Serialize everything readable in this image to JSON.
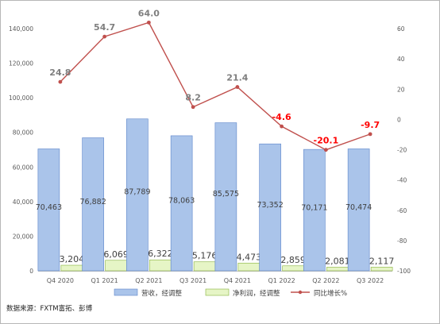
{
  "chart_data": {
    "type": "bar",
    "categories": [
      "Q4 2020",
      "Q1 2021",
      "Q2 2021",
      "Q3 2021",
      "Q4 2021",
      "Q1 2022",
      "Q2 2022",
      "Q3 2022"
    ],
    "series": [
      {
        "name": "营收，经调整",
        "type": "bar",
        "axis": "left",
        "values": [
          70463,
          76882,
          87789,
          78063,
          85575,
          73352,
          70171,
          70474
        ],
        "labels": [
          "70,463",
          "76,882",
          "87,789",
          "78,063",
          "85,575",
          "73,352",
          "70,171",
          "70,474"
        ]
      },
      {
        "name": "净利润，经调整",
        "type": "bar",
        "axis": "left",
        "values": [
          3204,
          6069,
          6322,
          5176,
          4473,
          2859,
          2081,
          2117
        ],
        "labels": [
          "3,204",
          "6,069",
          "6,322",
          "5,176",
          "4,473",
          "2,859",
          "2,081",
          "2,117"
        ]
      },
      {
        "name": "同比增长%",
        "type": "line",
        "axis": "right",
        "values": [
          24.8,
          54.7,
          64.0,
          8.2,
          21.4,
          -4.6,
          -20.1,
          -9.7
        ],
        "labels": [
          "24.8",
          "54.7",
          "64.0",
          "8.2",
          "21.4",
          "-4.6",
          "-20.1",
          "-9.7"
        ]
      }
    ],
    "y_left": {
      "ylim": [
        0,
        140000
      ],
      "ticks": [
        "0",
        "20,000",
        "40,000",
        "60,000",
        "80,000",
        "100,000",
        "120,000",
        "140,000"
      ]
    },
    "y_right": {
      "ylim": [
        -100,
        60
      ],
      "ticks": [
        "-100",
        "-80",
        "-60",
        "-40",
        "-20",
        "0",
        "20",
        "40",
        "60"
      ]
    },
    "legend_position": "bottom",
    "grid": false,
    "colors": {
      "revenue": "#aac4ea",
      "revenue_border": "#5b84c9",
      "profit": "#e6f5c6",
      "profit_border": "#86b13a",
      "growth": "#c0504d",
      "negative_label": "#ff0000",
      "positive_label": "#7f7f7f"
    },
    "source": "数据来源：FXTM富拓、彭博"
  }
}
